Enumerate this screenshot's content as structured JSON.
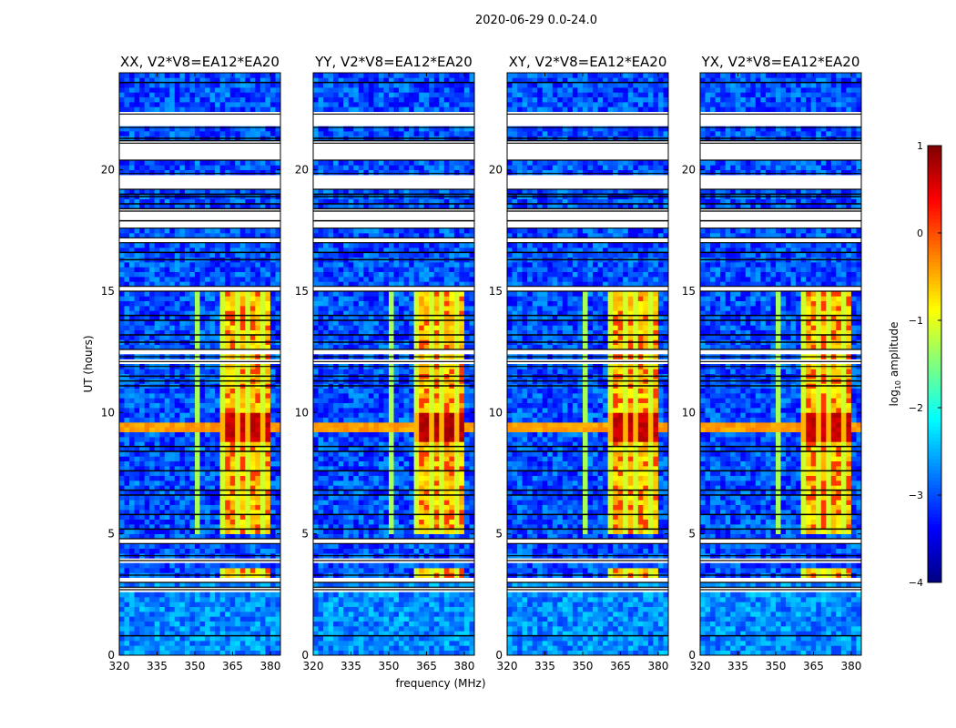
{
  "chart_data": {
    "type": "heatmap",
    "suptitle": "2020-06-29 0.0-24.0",
    "xlabel": "frequency (MHz)",
    "ylabel": "UT (hours)",
    "xlim": [
      320,
      384
    ],
    "ylim": [
      0,
      24
    ],
    "xticks": [
      "320",
      "335",
      "350",
      "365",
      "380"
    ],
    "xtick_values": [
      320,
      335,
      350,
      365,
      380
    ],
    "yticks": [
      "0",
      "5",
      "10",
      "15",
      "20"
    ],
    "ytick_values": [
      0,
      5,
      10,
      15,
      20
    ],
    "colorbar": {
      "label": "log10 amplitude",
      "label_main": "log",
      "label_sub": "10",
      "label_rest": " amplitude",
      "range": [
        -4,
        1
      ],
      "ticks": [
        "−4",
        "−3",
        "−2",
        "−1",
        "0",
        "1"
      ],
      "tick_values": [
        -4,
        -3,
        -2,
        -1,
        0,
        1
      ],
      "colormap": "jet"
    },
    "panels": [
      {
        "title": "XX, V2*V8=EA12*EA20",
        "rfi_peak": 0.5
      },
      {
        "title": "YY, V2*V8=EA12*EA20",
        "rfi_peak": 0.6
      },
      {
        "title": "XY, V2*V8=EA12*EA20",
        "rfi_peak": 0.5
      },
      {
        "title": "YX, V2*V8=EA12*EA20",
        "rfi_peak": 0.5
      }
    ],
    "background_level": -3.0,
    "low_time_level": {
      "range": [
        0,
        3
      ],
      "value": -2.7
    },
    "rfi_band": {
      "freq_range": [
        361,
        380
      ],
      "time_ranges": [
        [
          3.3,
          3.55
        ],
        [
          5.0,
          15.0
        ]
      ],
      "value": -0.9,
      "peak_time_range": [
        8.9,
        10.0
      ]
    },
    "broadband_rfi": {
      "time": 9.3,
      "value": -0.4
    },
    "narrow_line": {
      "freq": 351,
      "value": -1.3
    },
    "flagged_time_ranges": [
      [
        21.75,
        22.3
      ],
      [
        20.4,
        21.1
      ],
      [
        19.2,
        19.85
      ],
      [
        17.6,
        18.3
      ],
      [
        17.0,
        17.2
      ],
      [
        15.0,
        15.2
      ],
      [
        12.3,
        12.6
      ],
      [
        11.9,
        12.1
      ],
      [
        4.6,
        4.8
      ],
      [
        3.9,
        4.1
      ],
      [
        3.0,
        3.3
      ],
      [
        2.7,
        2.8
      ]
    ],
    "flag_edges": [
      23.6,
      21.3,
      21.2,
      19.0,
      18.9,
      18.6,
      18.4,
      17.9,
      16.6,
      16.3,
      14.0,
      13.8,
      13.2,
      12.9,
      11.5,
      11.3,
      11.1,
      8.6,
      8.4,
      7.6,
      6.8,
      6.6,
      5.8,
      5.2,
      0.8
    ]
  }
}
